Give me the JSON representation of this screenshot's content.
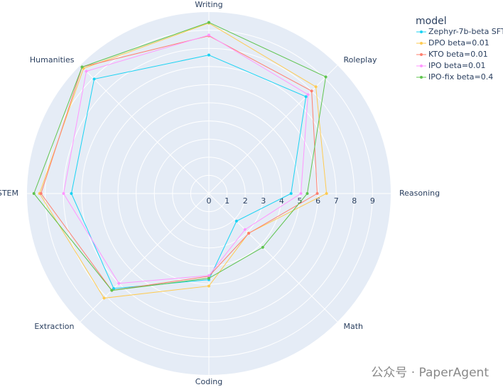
{
  "chart_data": {
    "type": "radar",
    "categories": [
      "Writing",
      "Roleplay",
      "Reasoning",
      "Math",
      "Coding",
      "Extraction",
      "STEM",
      "Humanities"
    ],
    "rlim": [
      0,
      10
    ],
    "rticks": [
      0,
      1,
      2,
      3,
      4,
      5,
      6,
      7,
      8,
      9
    ],
    "grid": true,
    "legend_title": "model",
    "legend_position": "top-right",
    "series": [
      {
        "name": "Zephyr-7b-beta SFT",
        "color": "#19d3f3",
        "values": [
          7.63,
          7.55,
          4.52,
          2.15,
          4.75,
          7.4,
          7.56,
          8.92
        ]
      },
      {
        "name": "DPO beta=0.01",
        "color": "#fecb52",
        "values": [
          9.39,
          8.32,
          6.47,
          3.09,
          5.1,
          8.15,
          9.31,
          9.75
        ]
      },
      {
        "name": "KTO beta=0.01",
        "color": "#ff7f6e",
        "values": [
          8.69,
          7.99,
          5.96,
          3.1,
          4.56,
          7.55,
          9.23,
          9.86
        ]
      },
      {
        "name": "IPO beta=0.01",
        "color": "#ff97ff",
        "values": [
          8.73,
          7.71,
          5.06,
          2.81,
          4.52,
          7.0,
          7.99,
          9.53
        ]
      },
      {
        "name": "IPO-fix beta=0.4",
        "color": "#5fc44f",
        "values": [
          9.43,
          9.09,
          5.41,
          4.19,
          4.67,
          7.55,
          9.62,
          9.86
        ]
      }
    ]
  },
  "watermark": "公众号 · PaperAgent"
}
